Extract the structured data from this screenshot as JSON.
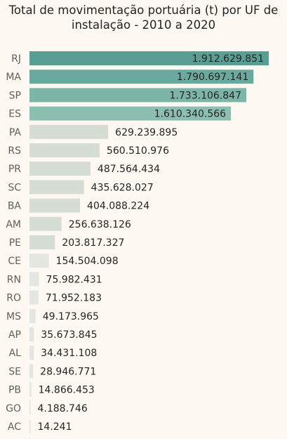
{
  "title_line1": "Total de movimentação portuária (t) por UF de",
  "title_line2": "instalação - 2010 a 2020",
  "colors": {
    "background": "#fdf8f1",
    "top_series": [
      "#5a9e93",
      "#6aaa9e",
      "#7db5a9",
      "#8cbfb2"
    ],
    "mid_bar": "#d6ddd5",
    "low_bar": "#e4e6e2"
  },
  "chart_data": {
    "type": "bar",
    "orientation": "horizontal",
    "title": "Total de movimentação portuária (t) por UF de instalação - 2010 a 2020",
    "xlabel": "",
    "ylabel": "",
    "categories": [
      "RJ",
      "MA",
      "SP",
      "ES",
      "PA",
      "RS",
      "PR",
      "SC",
      "BA",
      "AM",
      "PE",
      "CE",
      "RN",
      "RO",
      "MS",
      "AP",
      "AL",
      "SE",
      "PB",
      "GO",
      "AC"
    ],
    "values": [
      1912629851,
      1790697141,
      1733106847,
      1610340566,
      629239895,
      560510976,
      487564434,
      435628027,
      404088224,
      256638126,
      203817327,
      154504098,
      75982431,
      71952183,
      49173965,
      35673845,
      34431108,
      28946771,
      14866453,
      4188746,
      14241
    ],
    "value_labels": [
      "1.912.629.851",
      "1.790.697.141",
      "1.733.106.847",
      "1.610.340.566",
      "629.239.895",
      "560.510.976",
      "487.564.434",
      "435.628.027",
      "404.088.224",
      "256.638.126",
      "203.817.327",
      "154.504.098",
      "75.982.431",
      "71.952.183",
      "49.173.965",
      "35.673.845",
      "34.431.108",
      "28.946.771",
      "14.866.453",
      "4.188.746",
      "14.241"
    ],
    "xlim": [
      0,
      1912629851
    ],
    "grid": false,
    "legend": "none"
  }
}
